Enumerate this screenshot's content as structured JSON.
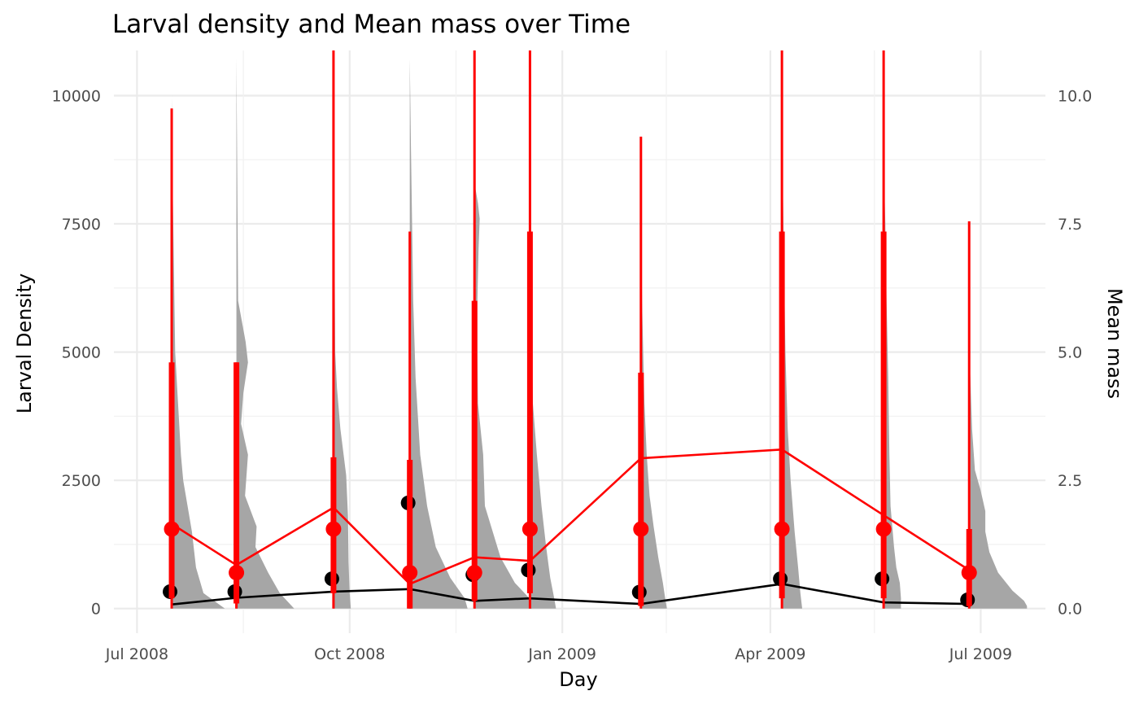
{
  "chart_data": {
    "type": "line",
    "title": "Larval density and Mean mass over Time",
    "xlabel": "Day",
    "ylabel_left": "Larval Density",
    "ylabel_right": "Mean mass",
    "ylabel_right_color": "#ff0000",
    "x_ticks": [
      "Jul 2008",
      "Oct 2008",
      "Jan 2009",
      "Apr 2009",
      "Jul 2009"
    ],
    "x_tick_dates": [
      "2008-07-01",
      "2008-10-01",
      "2009-01-01",
      "2009-04-01",
      "2009-07-01"
    ],
    "x_range": [
      "2008-06-21",
      "2009-07-29"
    ],
    "y_left_ticks": [
      "0",
      "2500",
      "5000",
      "7500",
      "10000"
    ],
    "y_left_tick_values": [
      0,
      2500,
      5000,
      7500,
      10000
    ],
    "y_left_range": [
      -480,
      10880
    ],
    "y_right_ticks": [
      "0.0",
      "2.5",
      "5.0",
      "7.5",
      "10.0"
    ],
    "y_right_tick_values": [
      0,
      2.5,
      5.0,
      7.5,
      10.0
    ],
    "y_right_range": [
      -0.48,
      10.88
    ],
    "grid": true,
    "colors": {
      "density": "#000000",
      "mass": "#ff0000",
      "distribution": "#a6a6a6"
    },
    "series": [
      {
        "name": "Larval Density",
        "axis": "left",
        "x": [
          "2008-07-16",
          "2008-08-13",
          "2008-09-24",
          "2008-10-27",
          "2008-11-24",
          "2008-12-18",
          "2009-02-04",
          "2009-04-06",
          "2009-05-20",
          "2009-06-26"
        ],
        "values": [
          80,
          210,
          330,
          380,
          150,
          200,
          90,
          480,
          120,
          90
        ],
        "point_values": [
          330,
          330,
          580,
          2060,
          660,
          750,
          320,
          580,
          580,
          170
        ]
      },
      {
        "name": "Mean mass",
        "axis": "right",
        "x": [
          "2008-07-16",
          "2008-08-13",
          "2008-09-24",
          "2008-10-27",
          "2008-11-24",
          "2008-12-18",
          "2009-02-04",
          "2009-04-06",
          "2009-05-20",
          "2009-06-26"
        ],
        "values": [
          1.65,
          0.85,
          1.97,
          0.48,
          1.0,
          0.93,
          2.93,
          3.1,
          1.82,
          0.75
        ],
        "point_values": [
          1.55,
          0.7,
          1.55,
          0.7,
          0.7,
          1.55,
          1.55,
          1.55,
          1.55,
          0.7
        ],
        "interval_thick": [
          [
            0.2,
            4.8
          ],
          [
            0.1,
            4.8
          ],
          [
            0.3,
            2.95
          ],
          [
            0.0,
            2.9
          ],
          [
            0.15,
            6.0
          ],
          [
            0.3,
            7.35
          ],
          [
            0.05,
            4.6
          ],
          [
            0.2,
            7.35
          ],
          [
            0.2,
            7.35
          ],
          [
            0.05,
            1.55
          ]
        ],
        "interval_thin": [
          [
            0.0,
            9.75
          ],
          [
            0.0,
            4.8
          ],
          [
            0.0,
            10.88
          ],
          [
            0.0,
            7.35
          ],
          [
            0.0,
            10.88
          ],
          [
            0.0,
            10.88
          ],
          [
            0.0,
            9.2
          ],
          [
            0.0,
            10.88
          ],
          [
            0.0,
            10.88
          ],
          [
            0.0,
            7.55
          ]
        ]
      }
    ],
    "distributions": [
      {
        "x": "2008-07-16",
        "y": [
          0,
          300,
          800,
          1500,
          2500,
          3000,
          5000,
          6500,
          8000,
          10000
        ],
        "w": [
          0.92,
          0.55,
          0.42,
          0.35,
          0.2,
          0.16,
          0.06,
          0.04,
          0.02,
          0
        ]
      },
      {
        "x": "2008-08-13",
        "y": [
          0,
          300,
          700,
          1200,
          1600,
          2200,
          3000,
          3600,
          4200,
          4800,
          5200,
          6000,
          10700
        ],
        "w": [
          1,
          0.75,
          0.55,
          0.33,
          0.35,
          0.15,
          0.2,
          0.08,
          0.12,
          0.2,
          0.16,
          0.03,
          0
        ]
      },
      {
        "x": "2008-09-24",
        "y": [
          0,
          300,
          900,
          1800,
          2600,
          3500,
          4300,
          5000,
          10800
        ],
        "w": [
          0.3,
          0.28,
          0.26,
          0.25,
          0.22,
          0.12,
          0.06,
          0.03,
          0
        ]
      },
      {
        "x": "2008-10-27",
        "y": [
          0,
          200,
          600,
          1200,
          2000,
          3000,
          4500,
          6000,
          7500,
          9000,
          10700
        ],
        "w": [
          1,
          0.95,
          0.7,
          0.45,
          0.3,
          0.18,
          0.1,
          0.06,
          0.04,
          0.02,
          0
        ]
      },
      {
        "x": "2008-11-24",
        "y": [
          0,
          200,
          500,
          1000,
          2000,
          3000,
          4000,
          5000,
          6000,
          7000,
          7600,
          7900,
          8300
        ],
        "w": [
          1,
          0.95,
          0.7,
          0.45,
          0.18,
          0.15,
          0.06,
          0.05,
          0.05,
          0.07,
          0.09,
          0.06,
          0
        ]
      },
      {
        "x": "2008-12-18",
        "y": [
          0,
          200,
          600,
          1200,
          2000,
          3000,
          4000,
          7500
        ],
        "w": [
          0.45,
          0.42,
          0.35,
          0.28,
          0.2,
          0.12,
          0.05,
          0
        ]
      },
      {
        "x": "2009-02-04",
        "y": [
          0,
          200,
          500,
          1000,
          1600,
          2200,
          3000,
          4000,
          5000,
          6000,
          7800
        ],
        "w": [
          0.45,
          0.42,
          0.38,
          0.3,
          0.22,
          0.15,
          0.1,
          0.06,
          0.04,
          0.02,
          0
        ]
      },
      {
        "x": "2009-04-06",
        "y": [
          0,
          300,
          800,
          1500,
          2500,
          3500,
          5000,
          6500,
          8000,
          10000
        ],
        "w": [
          0.35,
          0.32,
          0.28,
          0.22,
          0.15,
          0.1,
          0.06,
          0.04,
          0.02,
          0
        ]
      },
      {
        "x": "2009-05-20",
        "y": [
          0,
          200,
          500,
          800,
          1200,
          2000,
          3000,
          4500,
          6000,
          7500,
          8800
        ],
        "w": [
          0.3,
          0.3,
          0.28,
          0.22,
          0.18,
          0.12,
          0.1,
          0.08,
          0.05,
          0.03,
          0
        ]
      },
      {
        "x": "2009-06-26",
        "y": [
          0,
          50,
          150,
          350,
          700,
          1100,
          1500,
          1900,
          2300,
          2700,
          3500,
          4500,
          5000
        ],
        "w": [
          1,
          1,
          0.95,
          0.75,
          0.5,
          0.35,
          0.28,
          0.28,
          0.2,
          0.1,
          0.05,
          0.02,
          0
        ]
      }
    ]
  }
}
